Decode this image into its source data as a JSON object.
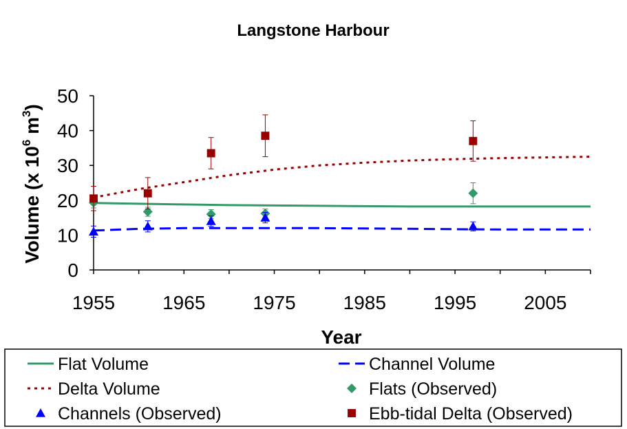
{
  "chart_data": {
    "type": "scatter",
    "title": "Langstone Harbour",
    "xlabel": "Year",
    "ylabel_main": "Volume (x 10",
    "ylabel_exp1": "6",
    "ylabel_mid": " m",
    "ylabel_exp2": "3",
    "ylabel_end": ")",
    "xlim": [
      1955,
      2010
    ],
    "ylim": [
      0,
      50
    ],
    "x_ticks": [
      1955,
      1965,
      1975,
      1985,
      1995,
      2005
    ],
    "y_ticks": [
      0,
      10,
      20,
      30,
      40,
      50
    ],
    "grid": false,
    "legend_position": "bottom",
    "series": [
      {
        "name": "Flat Volume",
        "kind": "line",
        "style": "solid",
        "color": "#339966",
        "x": [
          1955,
          1960,
          1965,
          1970,
          1975,
          1980,
          1985,
          1990,
          1995,
          2000,
          2005,
          2010
        ],
        "y": [
          19.2,
          19.0,
          18.8,
          18.6,
          18.5,
          18.4,
          18.3,
          18.2,
          18.2,
          18.2,
          18.2,
          18.2
        ]
      },
      {
        "name": "Channel Volume",
        "kind": "line",
        "style": "dashed",
        "color": "#0000ff",
        "x": [
          1955,
          1960,
          1965,
          1970,
          1975,
          1980,
          1985,
          1990,
          1995,
          2000,
          2005,
          2010
        ],
        "y": [
          11.3,
          11.8,
          12.0,
          12.0,
          12.0,
          12.0,
          11.9,
          11.8,
          11.7,
          11.6,
          11.6,
          11.6
        ]
      },
      {
        "name": "Delta Volume",
        "kind": "line",
        "style": "dotted",
        "color": "#990000",
        "x": [
          1955,
          1960,
          1965,
          1970,
          1975,
          1980,
          1985,
          1990,
          1995,
          2000,
          2005,
          2010
        ],
        "y": [
          20.8,
          23.2,
          25.2,
          27.2,
          28.8,
          30.0,
          30.8,
          31.4,
          31.8,
          32.1,
          32.3,
          32.5
        ]
      },
      {
        "name": "Flats (Observed)",
        "kind": "scatter",
        "marker": "diamond",
        "color": "#339966",
        "x": [
          1955,
          1961,
          1968,
          1974,
          1997
        ],
        "y": [
          19.3,
          16.7,
          16.0,
          16.2,
          22.0
        ],
        "err": [
          1.5,
          1.3,
          1.3,
          1.3,
          3.0
        ]
      },
      {
        "name": "Channels (Observed)",
        "kind": "scatter",
        "marker": "triangle",
        "color": "#0000ff",
        "x": [
          1955,
          1961,
          1968,
          1974,
          1997
        ],
        "y": [
          11.0,
          12.5,
          14.0,
          15.0,
          12.5
        ],
        "err": [
          1.6,
          1.6,
          1.5,
          1.5,
          1.3
        ]
      },
      {
        "name": "Ebb-tidal Delta (Observed)",
        "kind": "scatter",
        "marker": "square",
        "color": "#990000",
        "x": [
          1955,
          1961,
          1968,
          1974,
          1997
        ],
        "y": [
          20.5,
          22.0,
          33.5,
          38.5,
          37.0
        ],
        "err": [
          3.5,
          4.5,
          4.5,
          6.0,
          5.8
        ]
      }
    ],
    "legend_order": [
      "Flat Volume",
      "Channel Volume",
      "Delta Volume",
      "Flats (Observed)",
      "Channels (Observed)",
      "Ebb-tidal Delta (Observed)"
    ]
  }
}
